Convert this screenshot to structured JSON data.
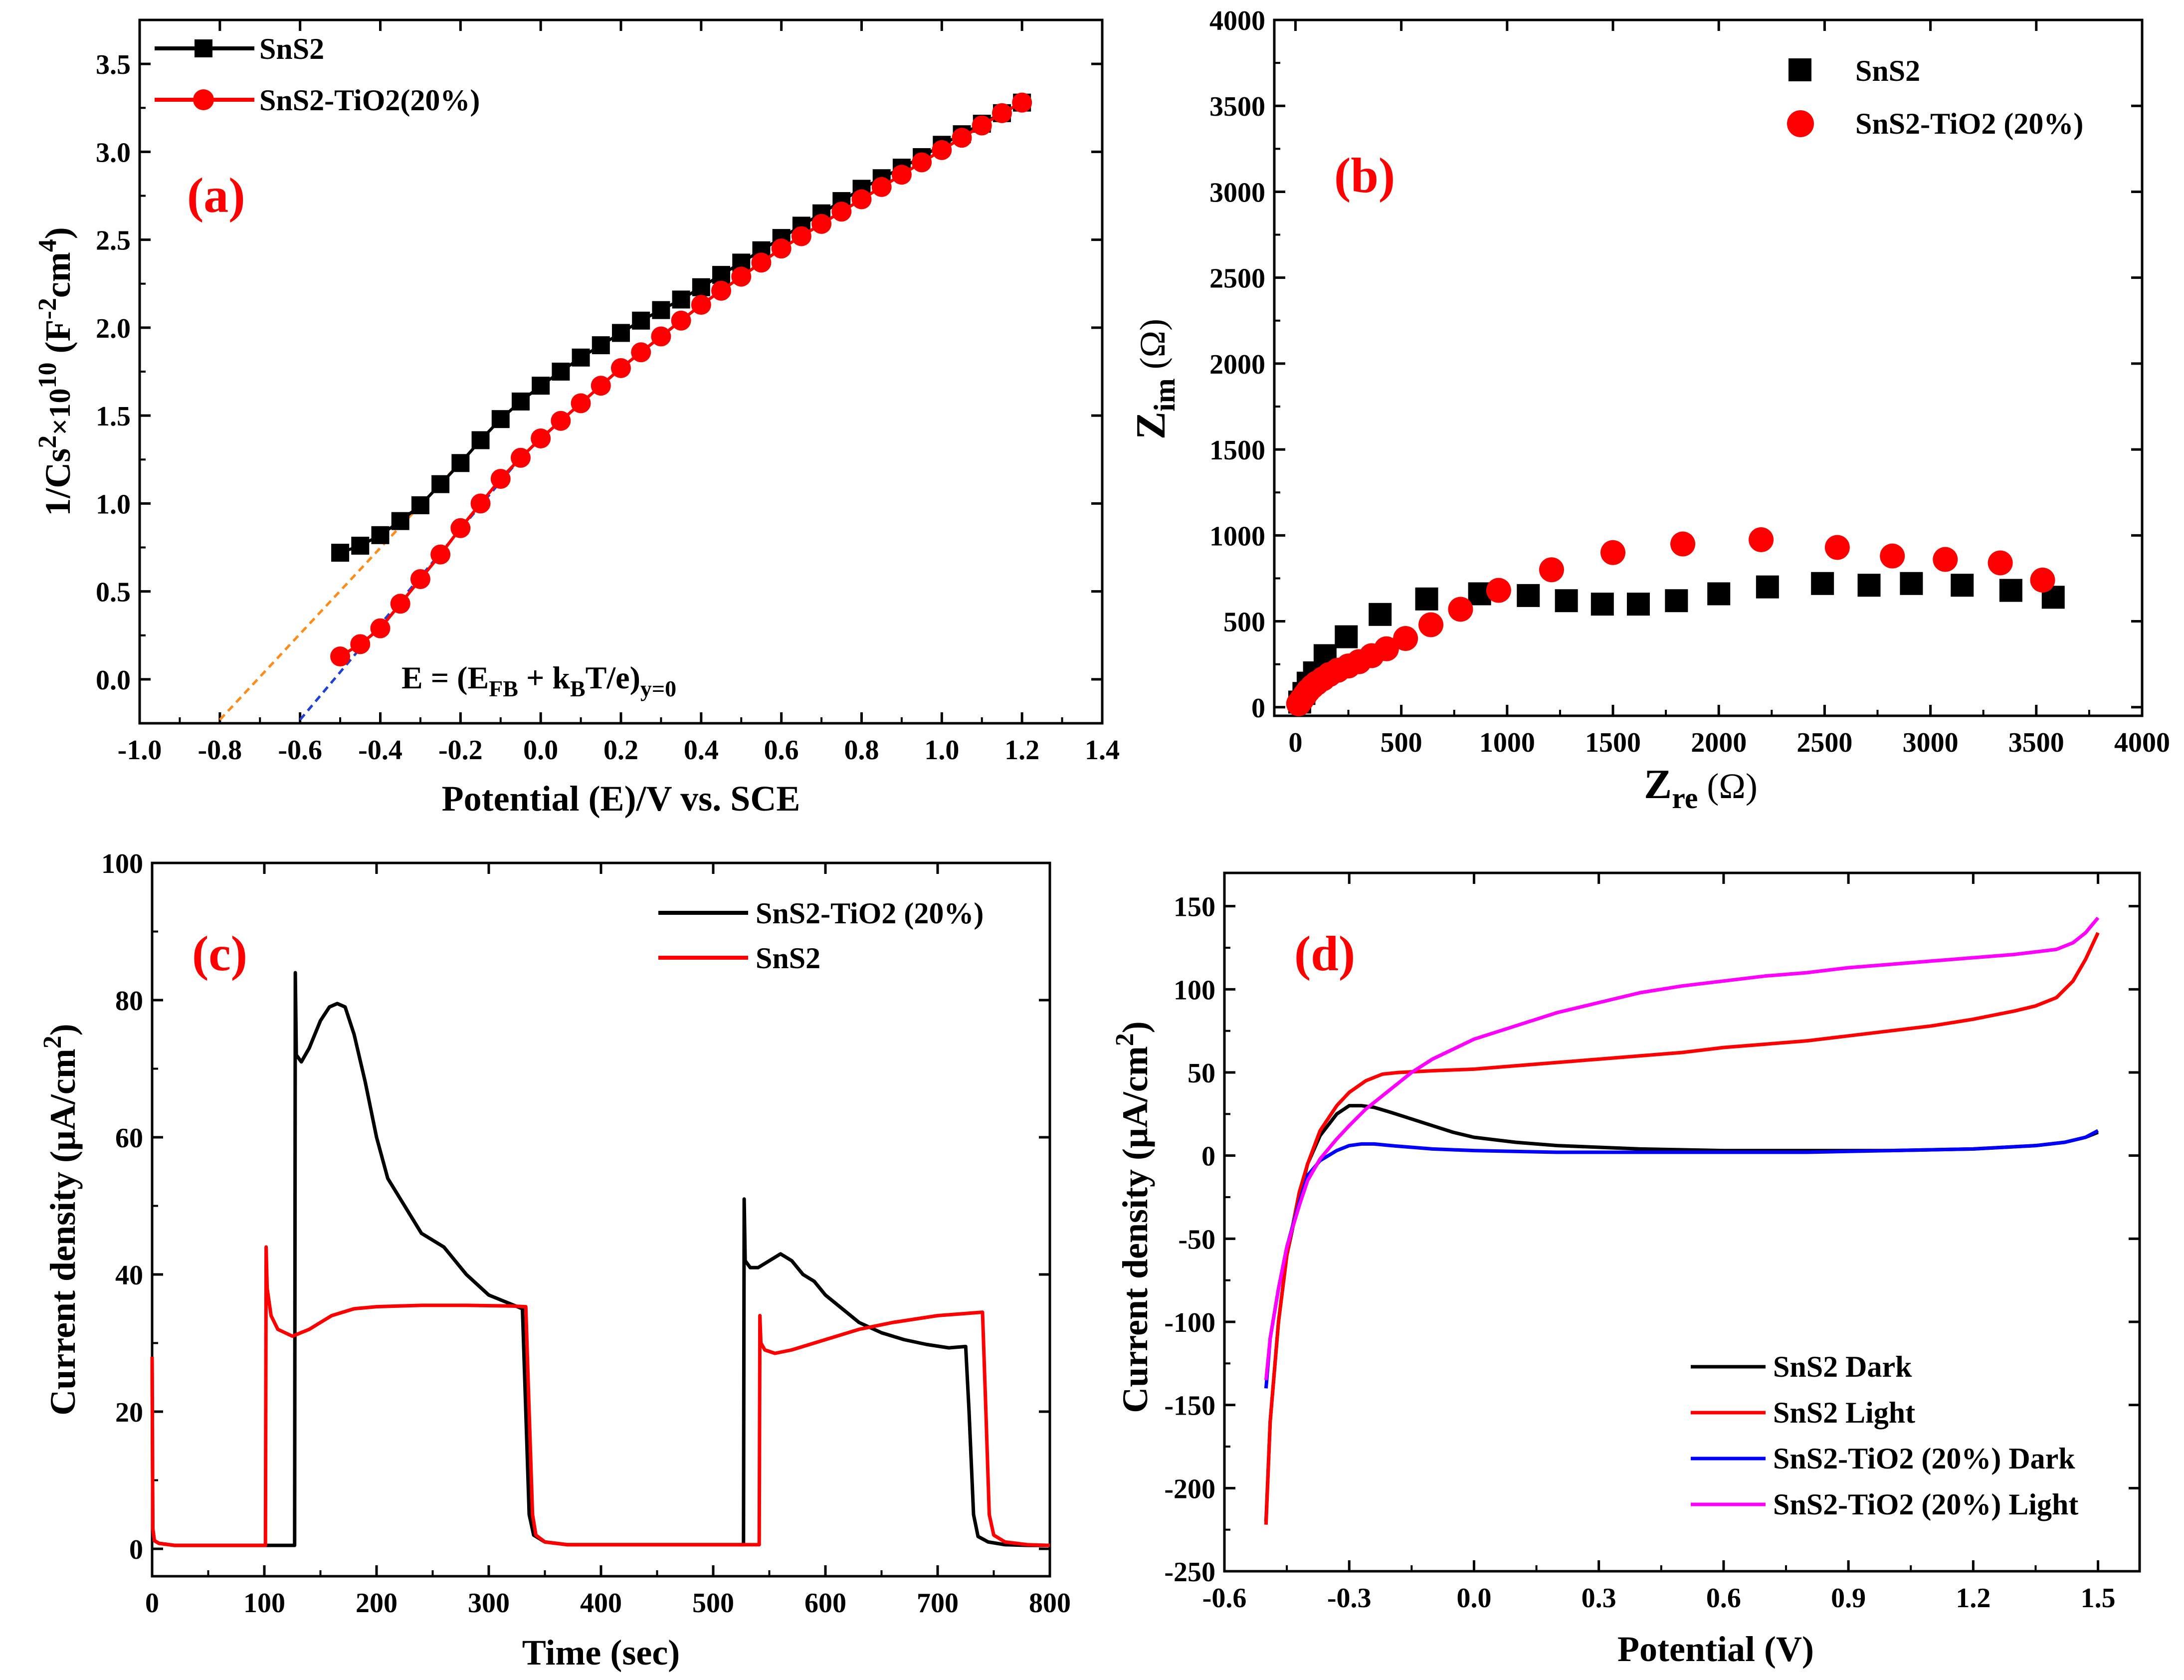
{
  "chart_data": [
    {
      "panel": "(a)",
      "type": "line",
      "xlabel": "Potential (E)/V vs. SCE",
      "ylabel": "1/Cs²×10¹⁰ (F⁻²cm⁴)",
      "ylabel_parts": {
        "base": "1/Cs",
        "sup1": "2",
        "mid": "×10",
        "sup2": "10",
        "unit_open": " (F",
        "sup3": "-2",
        "unit_mid": "cm",
        "sup4": "4",
        "unit_close": ")"
      },
      "xlim": [
        -1.0,
        1.4
      ],
      "ylim": [
        -0.25,
        3.75
      ],
      "xticks": [
        -1.0,
        -0.8,
        -0.6,
        -0.4,
        -0.2,
        0.0,
        0.2,
        0.4,
        0.6,
        0.8,
        1.0,
        1.2,
        1.4
      ],
      "xtick_labels": [
        "-1.0",
        "-0.8",
        "-0.6",
        "-0.4",
        "-0.2",
        "0.0",
        "0.2",
        "0.4",
        "0.6",
        "0.8",
        "1.0",
        "1.2",
        "1.4"
      ],
      "yticks": [
        0.0,
        0.5,
        1.0,
        1.5,
        2.0,
        2.5,
        3.0,
        3.5
      ],
      "ytick_labels": [
        "0.0",
        "0.5",
        "1.0",
        "1.5",
        "2.0",
        "2.5",
        "3.0",
        "3.5"
      ],
      "annotation": {
        "prefix": "E = (E",
        "sub1": "FB",
        "mid": " + k",
        "sub2": "B",
        "suffix": "T/e)",
        "sub3": "y=0"
      },
      "series": [
        {
          "name": "SnS2",
          "color": "#000000",
          "marker": "square",
          "x": [
            -0.5,
            -0.45,
            -0.4,
            -0.35,
            -0.3,
            -0.25,
            -0.2,
            -0.15,
            -0.1,
            -0.05,
            0.0,
            0.05,
            0.1,
            0.15,
            0.2,
            0.25,
            0.3,
            0.35,
            0.4,
            0.45,
            0.5,
            0.55,
            0.6,
            0.65,
            0.7,
            0.75,
            0.8,
            0.85,
            0.9,
            0.95,
            1.0,
            1.05,
            1.1,
            1.15,
            1.2
          ],
          "y": [
            0.72,
            0.76,
            0.82,
            0.9,
            0.99,
            1.11,
            1.23,
            1.36,
            1.48,
            1.58,
            1.67,
            1.75,
            1.83,
            1.9,
            1.97,
            2.04,
            2.1,
            2.16,
            2.23,
            2.3,
            2.37,
            2.44,
            2.51,
            2.58,
            2.65,
            2.72,
            2.79,
            2.85,
            2.91,
            2.97,
            3.04,
            3.1,
            3.16,
            3.22,
            3.28
          ]
        },
        {
          "name": "SnS2-TiO2(20%)",
          "color": "#ff0000",
          "marker": "circle",
          "x": [
            -0.5,
            -0.45,
            -0.4,
            -0.35,
            -0.3,
            -0.25,
            -0.2,
            -0.15,
            -0.1,
            -0.05,
            0.0,
            0.05,
            0.1,
            0.15,
            0.2,
            0.25,
            0.3,
            0.35,
            0.4,
            0.45,
            0.5,
            0.55,
            0.6,
            0.65,
            0.7,
            0.75,
            0.8,
            0.85,
            0.9,
            0.95,
            1.0,
            1.05,
            1.1,
            1.15,
            1.2
          ],
          "y": [
            0.13,
            0.2,
            0.29,
            0.43,
            0.57,
            0.71,
            0.86,
            1.0,
            1.14,
            1.26,
            1.37,
            1.47,
            1.57,
            1.67,
            1.77,
            1.86,
            1.95,
            2.04,
            2.13,
            2.21,
            2.29,
            2.37,
            2.45,
            2.52,
            2.59,
            2.66,
            2.73,
            2.8,
            2.87,
            2.94,
            3.01,
            3.08,
            3.15,
            3.22,
            3.28
          ]
        }
      ],
      "fit_lines": [
        {
          "color": "#ff8c1a",
          "dash": true,
          "x": [
            -0.8,
            -0.1
          ],
          "y": [
            -0.23,
            1.48
          ]
        },
        {
          "color": "#1f3fd9",
          "dash": true,
          "x": [
            -0.6,
            -0.05
          ],
          "y": [
            -0.23,
            1.26
          ]
        }
      ]
    },
    {
      "panel": "(b)",
      "type": "scatter",
      "xlabel_base": "Z",
      "xlabel_sub": "re",
      "xlabel_unit": " (Ω)",
      "ylabel_base": "Z",
      "ylabel_sub": "im",
      "ylabel_unit": " (Ω)",
      "xlim": [
        -100,
        4000
      ],
      "ylim": [
        -50,
        4000
      ],
      "xticks": [
        0,
        500,
        1000,
        1500,
        2000,
        2500,
        3000,
        3500,
        4000
      ],
      "xtick_labels": [
        "0",
        "500",
        "1000",
        "1500",
        "2000",
        "2500",
        "3000",
        "3500",
        "4000"
      ],
      "yticks": [
        0,
        500,
        1000,
        1500,
        2000,
        2500,
        3000,
        3500,
        4000
      ],
      "ytick_labels": [
        "0",
        "500",
        "1000",
        "1500",
        "2000",
        "2500",
        "3000",
        "3500",
        "4000"
      ],
      "series": [
        {
          "name": "SnS2",
          "color": "#000000",
          "marker": "square",
          "x": [
            20,
            40,
            60,
            90,
            140,
            240,
            400,
            620,
            870,
            1100,
            1280,
            1450,
            1620,
            1800,
            2000,
            2230,
            2490,
            2710,
            2910,
            3150,
            3380,
            3580
          ],
          "y": [
            30,
            80,
            140,
            200,
            300,
            410,
            540,
            630,
            660,
            650,
            620,
            600,
            600,
            620,
            660,
            700,
            720,
            710,
            720,
            710,
            680,
            640
          ]
        },
        {
          "name": "SnS2-TiO2 (20%)",
          "color": "#ff0000",
          "marker": "circle",
          "x": [
            15,
            30,
            45,
            60,
            80,
            100,
            130,
            160,
            200,
            250,
            300,
            360,
            430,
            520,
            640,
            780,
            960,
            1210,
            1500,
            1830,
            2200,
            2560,
            2820,
            3070,
            3330,
            3530
          ],
          "y": [
            20,
            45,
            70,
            95,
            120,
            140,
            165,
            190,
            215,
            240,
            265,
            300,
            340,
            400,
            480,
            570,
            680,
            800,
            900,
            950,
            975,
            930,
            880,
            860,
            840,
            740
          ]
        }
      ]
    },
    {
      "panel": "(c)",
      "type": "line",
      "xlabel": "Time (sec)",
      "ylabel_prefix": "Current density (μA/cm",
      "ylabel_sup": "2",
      "ylabel_suffix": ")",
      "xlim": [
        0,
        800
      ],
      "ylim": [
        -4,
        100
      ],
      "xticks": [
        0,
        100,
        200,
        300,
        400,
        500,
        600,
        700,
        800
      ],
      "xtick_labels": [
        "0",
        "100",
        "200",
        "300",
        "400",
        "500",
        "600",
        "700",
        "800"
      ],
      "yticks": [
        0,
        20,
        40,
        60,
        80,
        100
      ],
      "ytick_labels": [
        "0",
        "20",
        "40",
        "60",
        "80",
        "100"
      ],
      "series": [
        {
          "name": "SnS2-TiO2 (20%)",
          "color": "#000000",
          "x": [
            0,
            0.6,
            2,
            6,
            20,
            127,
            127.6,
            128.5,
            133,
            140,
            150,
            158,
            165,
            172,
            180,
            190,
            200,
            210,
            225,
            240,
            260,
            280,
            300,
            315,
            330,
            333,
            336,
            340,
            350,
            370,
            527,
            527.6,
            528.5,
            533,
            540,
            550,
            560,
            570,
            580,
            590,
            600,
            615,
            630,
            650,
            670,
            690,
            710,
            725,
            728,
            732,
            736,
            745,
            760,
            780,
            800
          ],
          "y": [
            28,
            3,
            1.2,
            0.8,
            0.5,
            0.5,
            84,
            72,
            71,
            73,
            77,
            79,
            79.5,
            79,
            75,
            68,
            60,
            54,
            50,
            46,
            44,
            40,
            37,
            36,
            35,
            20,
            5,
            2,
            1,
            0.6,
            0.6,
            51,
            42,
            41,
            41,
            42,
            43,
            42,
            40,
            39,
            37,
            35,
            33,
            31.5,
            30.5,
            29.8,
            29.3,
            29.5,
            20,
            5,
            1.8,
            1,
            0.6,
            0.5,
            0.5
          ]
        },
        {
          "name": "SnS2",
          "color": "#ff0000",
          "x": [
            0,
            0.6,
            2,
            6,
            20,
            101,
            101.6,
            102.5,
            106,
            112,
            125,
            140,
            160,
            180,
            200,
            240,
            280,
            320,
            333,
            336,
            339,
            342,
            350,
            370,
            541,
            541.6,
            542.5,
            546,
            555,
            570,
            600,
            630,
            660,
            700,
            740,
            743,
            746,
            750,
            760,
            780,
            800
          ],
          "y": [
            28,
            3,
            1.2,
            0.8,
            0.5,
            0.5,
            44,
            38,
            34,
            32,
            31,
            32,
            34,
            35,
            35.3,
            35.5,
            35.5,
            35.4,
            35.3,
            20,
            5,
            2,
            1,
            0.6,
            0.6,
            34,
            30,
            29,
            28.5,
            29,
            30.5,
            32,
            33,
            34,
            34.5,
            20,
            5,
            2,
            1,
            0.6,
            0.5
          ]
        }
      ]
    },
    {
      "panel": "(d)",
      "type": "line",
      "xlabel": "Potential (V)",
      "ylabel_prefix": "Current density (μA/cm",
      "ylabel_sup": "2",
      "ylabel_suffix": ")",
      "xlim": [
        -0.6,
        1.6
      ],
      "ylim": [
        -250,
        170
      ],
      "xticks": [
        -0.6,
        -0.3,
        0.0,
        0.3,
        0.6,
        0.9,
        1.2,
        1.5
      ],
      "xtick_labels": [
        "-0.6",
        "-0.3",
        "0.0",
        "0.3",
        "0.6",
        "0.9",
        "1.2",
        "1.5"
      ],
      "yticks": [
        -250,
        -200,
        -150,
        -100,
        -50,
        0,
        50,
        100,
        150
      ],
      "ytick_labels": [
        "-250",
        "-200",
        "-150",
        "-100",
        "-50",
        "0",
        "50",
        "100",
        "150"
      ],
      "series": [
        {
          "name": "SnS2 Dark",
          "color": "#000000",
          "x": [
            -0.5,
            -0.49,
            -0.47,
            -0.45,
            -0.42,
            -0.4,
            -0.37,
            -0.33,
            -0.3,
            -0.27,
            -0.24,
            -0.2,
            -0.15,
            -0.1,
            -0.05,
            0.0,
            0.1,
            0.2,
            0.4,
            0.6,
            0.8,
            1.0,
            1.2,
            1.35,
            1.42,
            1.47,
            1.5
          ],
          "y": [
            -220,
            -160,
            -100,
            -60,
            -25,
            -5,
            12,
            25,
            30,
            30,
            29,
            26,
            22,
            18,
            14,
            11,
            8,
            6,
            4,
            3,
            3,
            3,
            4,
            6,
            8,
            11,
            14
          ]
        },
        {
          "name": "SnS2 Light",
          "color": "#ff0000",
          "x": [
            -0.5,
            -0.49,
            -0.47,
            -0.45,
            -0.42,
            -0.4,
            -0.37,
            -0.33,
            -0.3,
            -0.26,
            -0.22,
            -0.18,
            -0.1,
            0.0,
            0.1,
            0.2,
            0.3,
            0.4,
            0.5,
            0.6,
            0.7,
            0.8,
            0.9,
            1.0,
            1.1,
            1.2,
            1.3,
            1.35,
            1.4,
            1.44,
            1.47,
            1.5
          ],
          "y": [
            -222,
            -160,
            -100,
            -60,
            -22,
            -5,
            15,
            30,
            38,
            45,
            49,
            50,
            51,
            52,
            54,
            56,
            58,
            60,
            62,
            65,
            67,
            69,
            72,
            75,
            78,
            82,
            87,
            90,
            95,
            105,
            118,
            134
          ]
        },
        {
          "name": "SnS2-TiO2 (20%) Dark",
          "color": "#0000ff",
          "x": [
            -0.5,
            -0.49,
            -0.47,
            -0.45,
            -0.42,
            -0.4,
            -0.37,
            -0.33,
            -0.3,
            -0.27,
            -0.24,
            -0.2,
            -0.1,
            0.0,
            0.2,
            0.4,
            0.6,
            0.8,
            1.0,
            1.2,
            1.35,
            1.42,
            1.47,
            1.5
          ],
          "y": [
            -140,
            -110,
            -80,
            -55,
            -28,
            -12,
            -3,
            3,
            6,
            7,
            7,
            6,
            4,
            3,
            2,
            2,
            2,
            2,
            3,
            4,
            6,
            8,
            11,
            15
          ]
        },
        {
          "name": "SnS2-TiO2 (20%) Light",
          "color": "#ff00ff",
          "x": [
            -0.5,
            -0.49,
            -0.47,
            -0.45,
            -0.42,
            -0.4,
            -0.37,
            -0.33,
            -0.3,
            -0.26,
            -0.2,
            -0.15,
            -0.1,
            -0.05,
            0.0,
            0.1,
            0.2,
            0.3,
            0.4,
            0.5,
            0.6,
            0.7,
            0.8,
            0.9,
            1.0,
            1.1,
            1.2,
            1.3,
            1.4,
            1.44,
            1.47,
            1.5
          ],
          "y": [
            -135,
            -110,
            -80,
            -55,
            -30,
            -15,
            -2,
            10,
            18,
            28,
            40,
            50,
            58,
            64,
            70,
            78,
            86,
            92,
            98,
            102,
            105,
            108,
            110,
            113,
            115,
            117,
            119,
            121,
            124,
            128,
            134,
            143
          ]
        }
      ]
    }
  ]
}
